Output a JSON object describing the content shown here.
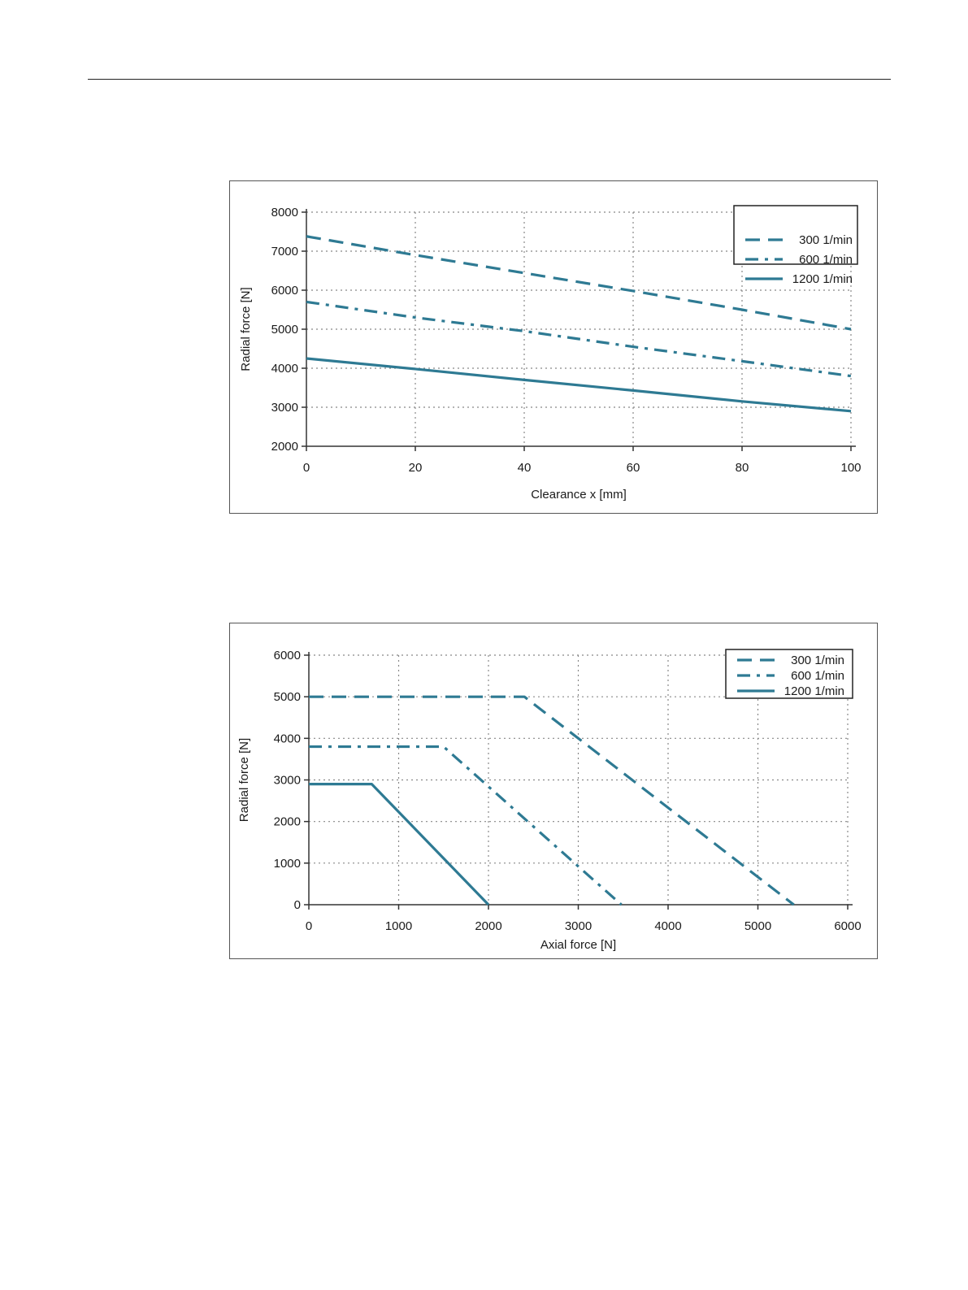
{
  "chart_data": [
    {
      "type": "line",
      "xlabel": "Clearance x [mm]",
      "ylabel": "Radial force [N]",
      "xlim": [
        0,
        100
      ],
      "ylim": [
        2000,
        8000
      ],
      "xticks": [
        0,
        20,
        40,
        60,
        80,
        100
      ],
      "yticks": [
        2000,
        3000,
        4000,
        5000,
        6000,
        7000,
        8000
      ],
      "grid": true,
      "legend_position": "top-right",
      "series": [
        {
          "name": "300 1/min",
          "style": "dashed",
          "x": [
            0,
            20,
            40,
            60,
            80,
            100
          ],
          "y": [
            7380,
            6900,
            6440,
            5980,
            5500,
            5000
          ]
        },
        {
          "name": "600 1/min",
          "style": "dash-dot",
          "x": [
            0,
            20,
            40,
            60,
            80,
            100
          ],
          "y": [
            5700,
            5300,
            4950,
            4550,
            4180,
            3800
          ]
        },
        {
          "name": "1200 1/min",
          "style": "solid",
          "x": [
            0,
            20,
            40,
            60,
            80,
            100
          ],
          "y": [
            4250,
            3980,
            3700,
            3430,
            3150,
            2900
          ]
        }
      ],
      "colors": {
        "series": "#2e7a93",
        "grid": "#888888",
        "axis": "#333333"
      }
    },
    {
      "type": "line",
      "xlabel": "Axial force [N]",
      "ylabel": "Radial force [N]",
      "xlim": [
        0,
        6000
      ],
      "ylim": [
        0,
        6000
      ],
      "xticks": [
        0,
        1000,
        2000,
        3000,
        4000,
        5000,
        6000
      ],
      "yticks": [
        0,
        1000,
        2000,
        3000,
        4000,
        5000,
        6000
      ],
      "grid": true,
      "legend_position": "top-right",
      "series": [
        {
          "name": "300 1/min",
          "style": "dashed",
          "x": [
            0,
            2400,
            5400
          ],
          "y": [
            5000,
            5000,
            0
          ]
        },
        {
          "name": "600 1/min",
          "style": "dash-dot",
          "x": [
            0,
            1500,
            3480
          ],
          "y": [
            3800,
            3800,
            0
          ]
        },
        {
          "name": "1200 1/min",
          "style": "solid",
          "x": [
            0,
            700,
            2000
          ],
          "y": [
            2900,
            2900,
            0
          ]
        }
      ],
      "colors": {
        "series": "#2e7a93",
        "grid": "#888888",
        "axis": "#333333"
      }
    }
  ]
}
